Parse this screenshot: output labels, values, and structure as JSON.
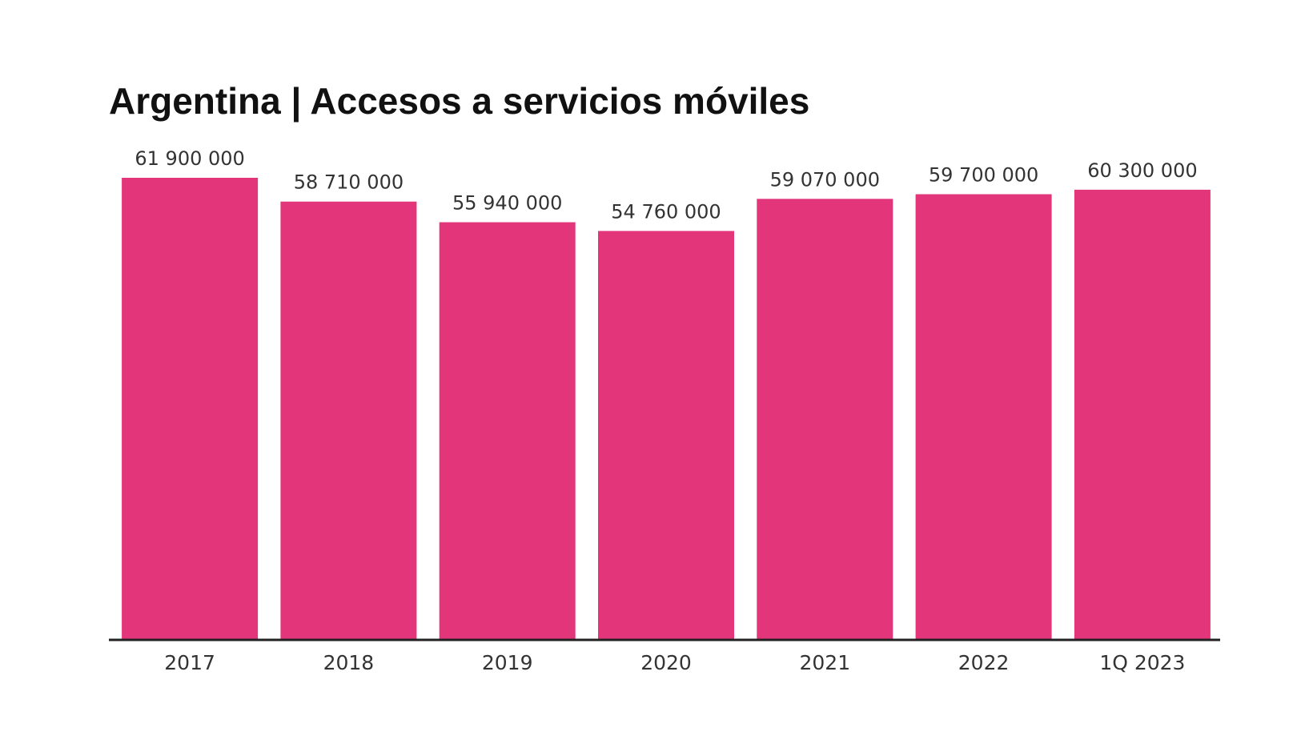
{
  "chart_data": {
    "type": "bar",
    "title": "Argentina | Accesos a servicios móviles",
    "xlabel": "",
    "ylabel": "",
    "categories": [
      "2017",
      "2018",
      "2019",
      "2020",
      "2021",
      "2022",
      "1Q 2023"
    ],
    "values": [
      61900000,
      58710000,
      55940000,
      54760000,
      59070000,
      59700000,
      60300000
    ],
    "value_labels": [
      "61 900 000",
      "58 710 000",
      "55 940 000",
      "54 760 000",
      "59 070 000",
      "59 700 000",
      "60 300 000"
    ],
    "ylim": [
      0,
      61900000
    ],
    "grid": false,
    "legend": "none",
    "colors": {
      "bar": "#E3357A",
      "axis": "#222222",
      "text": "#333333"
    }
  }
}
